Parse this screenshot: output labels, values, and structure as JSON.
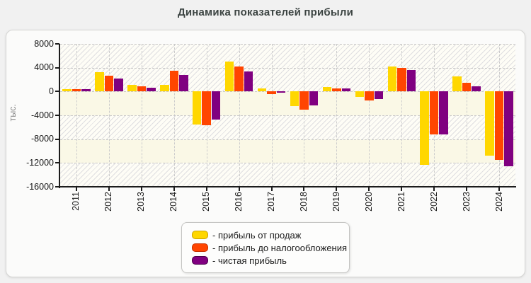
{
  "title": "Динамика показателей прибыли",
  "chart_data": {
    "type": "bar",
    "title": "Динамика показателей прибыли",
    "xlabel": "",
    "ylabel": "тыс.",
    "categories": [
      "2011",
      "2012",
      "2013",
      "2014",
      "2015",
      "2016",
      "2017",
      "2018",
      "2019",
      "2020",
      "2021",
      "2022",
      "2023",
      "2024"
    ],
    "series": [
      {
        "name": "- прибыль от продаж",
        "color": "#ffd700",
        "swatch_border": "#c9a200",
        "values": [
          400,
          3200,
          1150,
          1050,
          -5600,
          5000,
          500,
          -2500,
          750,
          -950,
          4250,
          -12300,
          2550,
          -10800
        ]
      },
      {
        "name": "- прибыль до налогообложения",
        "color": "#ff4500",
        "swatch_border": "#c63200",
        "values": [
          400,
          2700,
          850,
          3500,
          -5650,
          4250,
          -400,
          -3000,
          500,
          -1500,
          3950,
          -7200,
          1500,
          -11500
        ]
      },
      {
        "name": "- чистая прибыль",
        "color": "#800080",
        "swatch_border": "#4d004d",
        "values": [
          400,
          2200,
          600,
          2750,
          -4700,
          3400,
          -250,
          -2350,
          550,
          -1300,
          3550,
          -7250,
          900,
          -12600
        ]
      }
    ],
    "ylim": [
      -16000,
      8000
    ],
    "yticks": [
      8000,
      4000,
      0,
      -4000,
      -8000,
      -12000,
      -16000
    ],
    "band_hatch_top_to_bottom": [
      true,
      true,
      false,
      true,
      false,
      true
    ],
    "grid": "dashed",
    "legend_position": "bottom-center"
  }
}
